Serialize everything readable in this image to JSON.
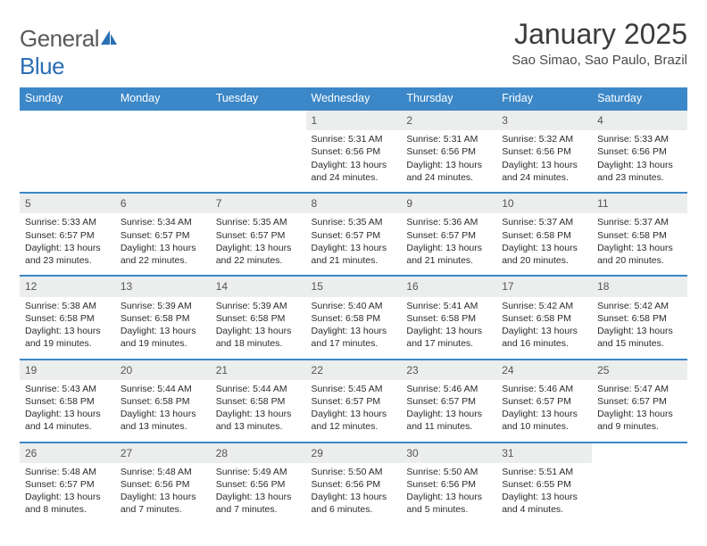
{
  "brand": {
    "part1": "General",
    "part2": "Blue"
  },
  "title": "January 2025",
  "location": "Sao Simao, Sao Paulo, Brazil",
  "colors": {
    "header_bg": "#3b87c8",
    "header_text": "#ffffff",
    "daynum_bg": "#eceded",
    "row_border": "#3b87c8",
    "body_text": "#2b2b2b",
    "logo_gray": "#5a5a5a",
    "logo_blue": "#2a6fb5"
  },
  "weekdays": [
    "Sunday",
    "Monday",
    "Tuesday",
    "Wednesday",
    "Thursday",
    "Friday",
    "Saturday"
  ],
  "first_day_index": 3,
  "days": [
    {
      "n": 1,
      "sunrise": "5:31 AM",
      "sunset": "6:56 PM",
      "daylight": "13 hours and 24 minutes."
    },
    {
      "n": 2,
      "sunrise": "5:31 AM",
      "sunset": "6:56 PM",
      "daylight": "13 hours and 24 minutes."
    },
    {
      "n": 3,
      "sunrise": "5:32 AM",
      "sunset": "6:56 PM",
      "daylight": "13 hours and 24 minutes."
    },
    {
      "n": 4,
      "sunrise": "5:33 AM",
      "sunset": "6:56 PM",
      "daylight": "13 hours and 23 minutes."
    },
    {
      "n": 5,
      "sunrise": "5:33 AM",
      "sunset": "6:57 PM",
      "daylight": "13 hours and 23 minutes."
    },
    {
      "n": 6,
      "sunrise": "5:34 AM",
      "sunset": "6:57 PM",
      "daylight": "13 hours and 22 minutes."
    },
    {
      "n": 7,
      "sunrise": "5:35 AM",
      "sunset": "6:57 PM",
      "daylight": "13 hours and 22 minutes."
    },
    {
      "n": 8,
      "sunrise": "5:35 AM",
      "sunset": "6:57 PM",
      "daylight": "13 hours and 21 minutes."
    },
    {
      "n": 9,
      "sunrise": "5:36 AM",
      "sunset": "6:57 PM",
      "daylight": "13 hours and 21 minutes."
    },
    {
      "n": 10,
      "sunrise": "5:37 AM",
      "sunset": "6:58 PM",
      "daylight": "13 hours and 20 minutes."
    },
    {
      "n": 11,
      "sunrise": "5:37 AM",
      "sunset": "6:58 PM",
      "daylight": "13 hours and 20 minutes."
    },
    {
      "n": 12,
      "sunrise": "5:38 AM",
      "sunset": "6:58 PM",
      "daylight": "13 hours and 19 minutes."
    },
    {
      "n": 13,
      "sunrise": "5:39 AM",
      "sunset": "6:58 PM",
      "daylight": "13 hours and 19 minutes."
    },
    {
      "n": 14,
      "sunrise": "5:39 AM",
      "sunset": "6:58 PM",
      "daylight": "13 hours and 18 minutes."
    },
    {
      "n": 15,
      "sunrise": "5:40 AM",
      "sunset": "6:58 PM",
      "daylight": "13 hours and 17 minutes."
    },
    {
      "n": 16,
      "sunrise": "5:41 AM",
      "sunset": "6:58 PM",
      "daylight": "13 hours and 17 minutes."
    },
    {
      "n": 17,
      "sunrise": "5:42 AM",
      "sunset": "6:58 PM",
      "daylight": "13 hours and 16 minutes."
    },
    {
      "n": 18,
      "sunrise": "5:42 AM",
      "sunset": "6:58 PM",
      "daylight": "13 hours and 15 minutes."
    },
    {
      "n": 19,
      "sunrise": "5:43 AM",
      "sunset": "6:58 PM",
      "daylight": "13 hours and 14 minutes."
    },
    {
      "n": 20,
      "sunrise": "5:44 AM",
      "sunset": "6:58 PM",
      "daylight": "13 hours and 13 minutes."
    },
    {
      "n": 21,
      "sunrise": "5:44 AM",
      "sunset": "6:58 PM",
      "daylight": "13 hours and 13 minutes."
    },
    {
      "n": 22,
      "sunrise": "5:45 AM",
      "sunset": "6:57 PM",
      "daylight": "13 hours and 12 minutes."
    },
    {
      "n": 23,
      "sunrise": "5:46 AM",
      "sunset": "6:57 PM",
      "daylight": "13 hours and 11 minutes."
    },
    {
      "n": 24,
      "sunrise": "5:46 AM",
      "sunset": "6:57 PM",
      "daylight": "13 hours and 10 minutes."
    },
    {
      "n": 25,
      "sunrise": "5:47 AM",
      "sunset": "6:57 PM",
      "daylight": "13 hours and 9 minutes."
    },
    {
      "n": 26,
      "sunrise": "5:48 AM",
      "sunset": "6:57 PM",
      "daylight": "13 hours and 8 minutes."
    },
    {
      "n": 27,
      "sunrise": "5:48 AM",
      "sunset": "6:56 PM",
      "daylight": "13 hours and 7 minutes."
    },
    {
      "n": 28,
      "sunrise": "5:49 AM",
      "sunset": "6:56 PM",
      "daylight": "13 hours and 7 minutes."
    },
    {
      "n": 29,
      "sunrise": "5:50 AM",
      "sunset": "6:56 PM",
      "daylight": "13 hours and 6 minutes."
    },
    {
      "n": 30,
      "sunrise": "5:50 AM",
      "sunset": "6:56 PM",
      "daylight": "13 hours and 5 minutes."
    },
    {
      "n": 31,
      "sunrise": "5:51 AM",
      "sunset": "6:55 PM",
      "daylight": "13 hours and 4 minutes."
    }
  ],
  "labels": {
    "sunrise": "Sunrise:",
    "sunset": "Sunset:",
    "daylight": "Daylight:"
  }
}
